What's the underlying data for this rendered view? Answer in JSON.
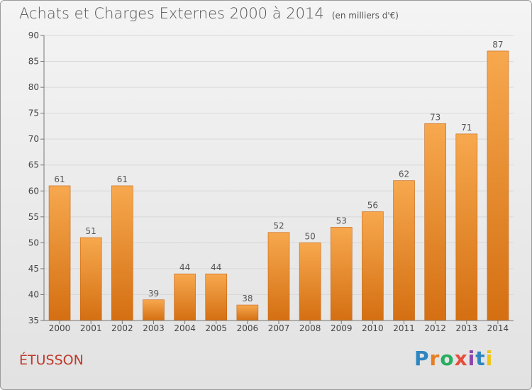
{
  "title": "Achats et Charges Externes 2000 à 2014",
  "unit": "(en milliers d'€)",
  "commune": "ÉTUSSON",
  "logo_letters": [
    {
      "t": "P",
      "color": "#2e86c1"
    },
    {
      "t": "r",
      "color": "#e67e22"
    },
    {
      "t": "o",
      "color": "#27ae60"
    },
    {
      "t": "x",
      "color": "#e74c3c"
    },
    {
      "t": "i",
      "color": "#8e44ad"
    },
    {
      "t": "t",
      "color": "#2e86c1"
    },
    {
      "t": "i",
      "color": "#f1c40f"
    }
  ],
  "colors": {
    "bar_top": "#f7a84e",
    "bar_bottom": "#d46f12",
    "bar_edge": "#c76514"
  },
  "chart_data": {
    "type": "bar",
    "categories": [
      "2000",
      "2001",
      "2002",
      "2003",
      "2004",
      "2005",
      "2006",
      "2007",
      "2008",
      "2009",
      "2010",
      "2011",
      "2012",
      "2013",
      "2014"
    ],
    "values": [
      61,
      51,
      61,
      39,
      44,
      44,
      38,
      52,
      50,
      53,
      56,
      62,
      73,
      71,
      87
    ],
    "ylim": [
      35,
      90
    ],
    "yticks": [
      35,
      40,
      45,
      50,
      55,
      60,
      65,
      70,
      75,
      80,
      85,
      90
    ],
    "xlabel": "",
    "ylabel": ""
  }
}
